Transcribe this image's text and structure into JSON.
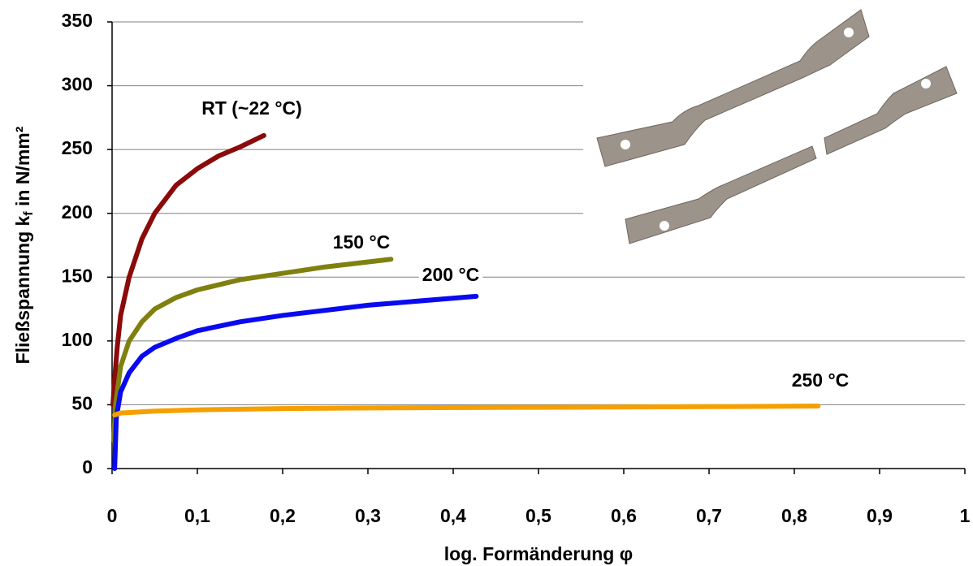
{
  "chart_data": {
    "type": "line",
    "x_label": "log. Formänderung φ",
    "y_label": {
      "main": "Fließspannung k",
      "sub": "f",
      "rest": " in N/mm²"
    },
    "xlim": [
      0,
      1
    ],
    "xticks": [
      0,
      {
        "value": 0.1,
        "label": "0,1"
      },
      {
        "value": 0.2,
        "label": "0,2"
      },
      {
        "value": 0.3,
        "label": "0,3"
      },
      {
        "value": 0.4,
        "label": "0,4"
      },
      {
        "value": 0.5,
        "label": "0,5"
      },
      {
        "value": 0.6,
        "label": "0,6"
      },
      {
        "value": 0.7,
        "label": "0,7"
      },
      {
        "value": 0.8,
        "label": "0,8"
      },
      {
        "value": 0.9,
        "label": "0,9"
      },
      1
    ],
    "ylim": [
      0,
      350
    ],
    "yticks": [
      0,
      50,
      100,
      150,
      200,
      250,
      300,
      350
    ],
    "grid": true,
    "series": [
      {
        "name": "RT (~22 °C)",
        "color": "#8b0a0a",
        "x": [
          0.001,
          0.003,
          0.006,
          0.01,
          0.02,
          0.035,
          0.05,
          0.075,
          0.1,
          0.125,
          0.15,
          0.178
        ],
        "values": [
          50,
          70,
          95,
          120,
          150,
          180,
          200,
          222,
          235,
          245,
          252,
          261
        ]
      },
      {
        "name": "150  °C",
        "color": "#808010",
        "x": [
          0.002,
          0.004,
          0.01,
          0.02,
          0.035,
          0.05,
          0.075,
          0.1,
          0.15,
          0.2,
          0.25,
          0.327
        ],
        "values": [
          22,
          50,
          80,
          100,
          115,
          125,
          134,
          140,
          148,
          153,
          158,
          164
        ]
      },
      {
        "name": "200 °C",
        "color": "#0a0af0",
        "x": [
          0.003,
          0.005,
          0.01,
          0.02,
          0.035,
          0.05,
          0.075,
          0.1,
          0.15,
          0.2,
          0.3,
          0.427
        ],
        "values": [
          0,
          40,
          60,
          75,
          88,
          95,
          102,
          108,
          115,
          120,
          128,
          135
        ]
      },
      {
        "name": "250 °C",
        "color": "#f5a000",
        "x": [
          0.003,
          0.01,
          0.05,
          0.1,
          0.2,
          0.3,
          0.5,
          0.7,
          0.828
        ],
        "values": [
          42,
          43.5,
          45,
          46,
          47,
          47.5,
          48,
          48.5,
          49
        ]
      }
    ]
  }
}
